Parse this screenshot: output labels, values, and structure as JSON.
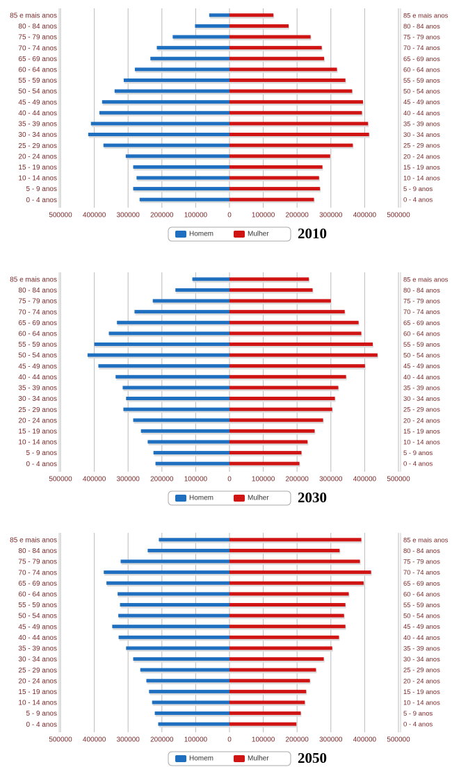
{
  "chart_data": [
    {
      "type": "pyramid",
      "title": "2010",
      "categories": [
        "85 e mais anos",
        "80 - 84 anos",
        "75 - 79 anos",
        "70 - 74 anos",
        "65 - 69 anos",
        "60 - 64 anos",
        "55 - 59 anos",
        "50 - 54 anos",
        "45 - 49 anos",
        "40 - 44 anos",
        "35 - 39 anos",
        "30 - 34 anos",
        "25 - 29 anos",
        "20 - 24 anos",
        "15 - 19 anos",
        "10 - 14 anos",
        "5 - 9 anos",
        "0 - 4 anos"
      ],
      "series": [
        {
          "name": "Homem",
          "color": "#1f6fc0",
          "values": [
            -60000,
            -102000,
            -168000,
            -215000,
            -234000,
            -280000,
            -313000,
            -340000,
            -377000,
            -385000,
            -410000,
            -418000,
            -373000,
            -307000,
            -285000,
            -275000,
            -285000,
            -266000
          ]
        },
        {
          "name": "Mulher",
          "color": "#d01414",
          "values": [
            130000,
            175000,
            240000,
            273000,
            280000,
            318000,
            343000,
            363000,
            395000,
            392000,
            410000,
            413000,
            365000,
            298000,
            275000,
            265000,
            268000,
            250000
          ]
        }
      ],
      "xlim": [
        -500000,
        500000
      ],
      "xticks": [
        {
          "value": -500000,
          "label": "500000"
        },
        {
          "value": -400000,
          "label": "400000"
        },
        {
          "value": -300000,
          "label": "300000"
        },
        {
          "value": -200000,
          "label": "200000"
        },
        {
          "value": -100000,
          "label": "100000"
        },
        0,
        100000,
        200000,
        300000,
        400000,
        500000
      ],
      "grid": true
    },
    {
      "type": "pyramid",
      "title": "2030",
      "categories": [
        "85 e mais anos",
        "80 - 84 anos",
        "75 - 79 anos",
        "70 - 74 anos",
        "65 - 69 anos",
        "60 - 64 anos",
        "55 - 59 anos",
        "50 - 54 anos",
        "45 - 49 anos",
        "40 - 44 anos",
        "35 - 39 anos",
        "30 - 34 anos",
        "25 - 29 anos",
        "20 - 24 anos",
        "15 - 19 anos",
        "10 - 14 anos",
        "5 - 9 anos",
        "0 - 4 anos"
      ],
      "series": [
        {
          "name": "Homem",
          "color": "#1f6fc0",
          "values": [
            -110000,
            -160000,
            -227000,
            -281000,
            -333000,
            -357000,
            -400000,
            -420000,
            -388000,
            -337000,
            -316000,
            -306000,
            -314000,
            -285000,
            -262000,
            -242000,
            -225000,
            -219000
          ]
        },
        {
          "name": "Mulher",
          "color": "#d01414",
          "values": [
            235000,
            246000,
            300000,
            341000,
            382000,
            390000,
            424000,
            438000,
            401000,
            345000,
            322000,
            312000,
            304000,
            277000,
            252000,
            231000,
            213000,
            207000
          ]
        }
      ],
      "xlim": [
        -500000,
        500000
      ],
      "xticks": [
        {
          "value": -500000,
          "label": "500000"
        },
        {
          "value": -400000,
          "label": "400000"
        },
        {
          "value": -300000,
          "label": "300000"
        },
        {
          "value": -200000,
          "label": "200000"
        },
        {
          "value": -100000,
          "label": "100000"
        },
        0,
        100000,
        200000,
        300000,
        400000,
        500000
      ],
      "grid": true
    },
    {
      "type": "pyramid",
      "title": "2050",
      "categories": [
        "85 e mais anos",
        "80 - 84 anos",
        "75 - 79 anos",
        "70 - 74 anos",
        "65 - 69 anos",
        "60 - 64 anos",
        "55 - 59 anos",
        "50 - 54 anos",
        "45 - 49 anos",
        "40 - 44 anos",
        "35 - 39 anos",
        "30 - 34 anos",
        "25 - 29 anos",
        "20 - 24 anos",
        "15 - 19 anos",
        "10 - 14 anos",
        "5 - 9 anos",
        "0 - 4 anos"
      ],
      "series": [
        {
          "name": "Homem",
          "color": "#1f6fc0",
          "values": [
            -209000,
            -242000,
            -322000,
            -372000,
            -364000,
            -331000,
            -324000,
            -329000,
            -347000,
            -328000,
            -306000,
            -285000,
            -264000,
            -246000,
            -238000,
            -229000,
            -221000,
            -211000
          ]
        },
        {
          "name": "Mulher",
          "color": "#d01414",
          "values": [
            390000,
            326000,
            386000,
            419000,
            397000,
            353000,
            343000,
            339000,
            343000,
            324000,
            304000,
            279000,
            256000,
            238000,
            227000,
            223000,
            211000,
            198000
          ]
        }
      ],
      "xlim": [
        -500000,
        500000
      ],
      "xticks": [
        {
          "value": -500000,
          "label": "500000"
        },
        {
          "value": -400000,
          "label": "400000"
        },
        {
          "value": -300000,
          "label": "300000"
        },
        {
          "value": -200000,
          "label": "200000"
        },
        {
          "value": -100000,
          "label": "100000"
        },
        0,
        100000,
        200000,
        300000,
        400000,
        500000
      ],
      "grid": true
    }
  ]
}
